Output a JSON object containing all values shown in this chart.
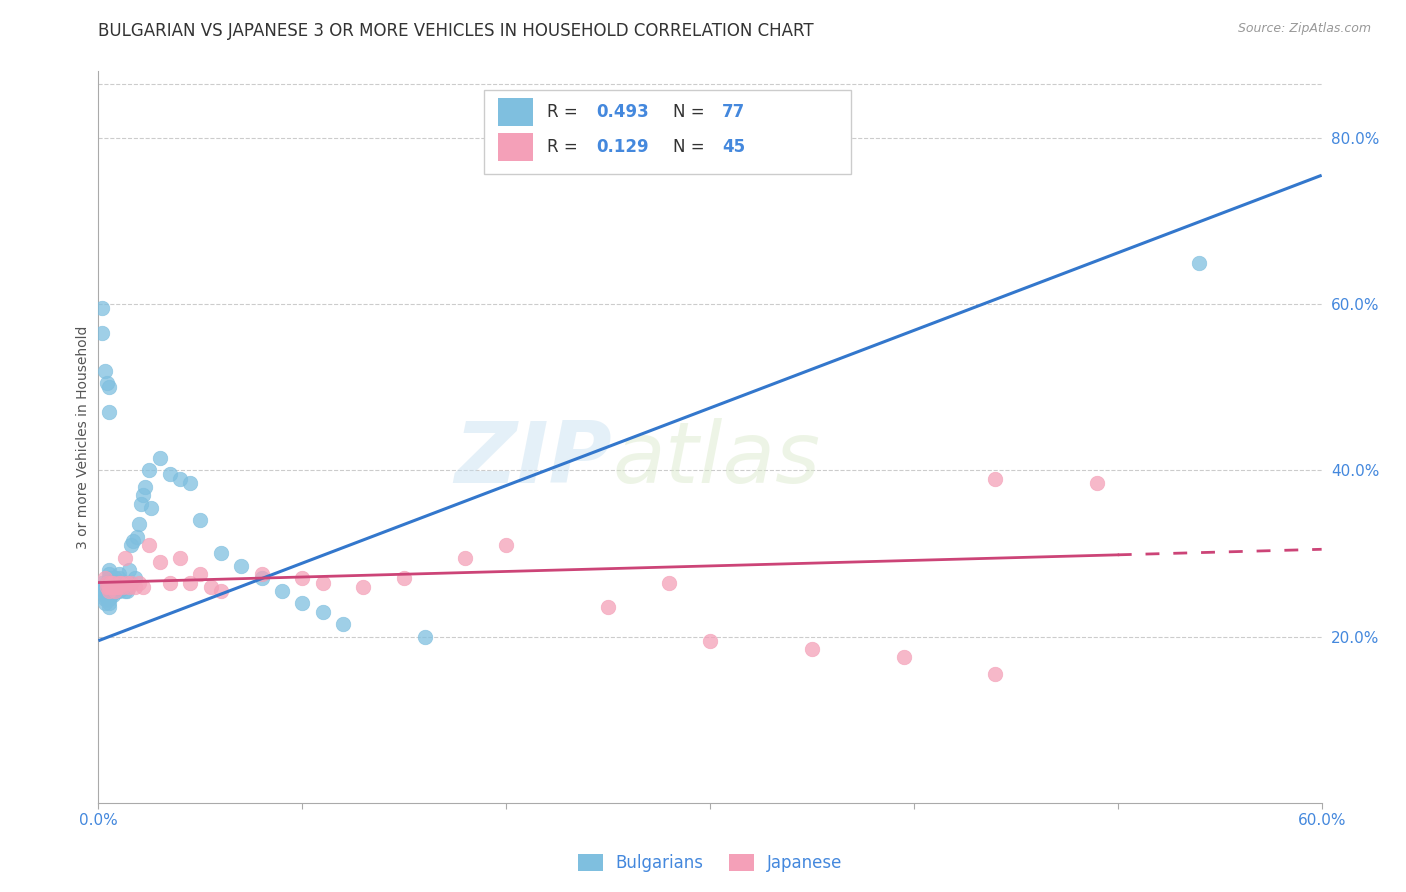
{
  "title": "BULGARIAN VS JAPANESE 3 OR MORE VEHICLES IN HOUSEHOLD CORRELATION CHART",
  "source": "Source: ZipAtlas.com",
  "ylabel": "3 or more Vehicles in Household",
  "xlim": [
    0.0,
    0.6
  ],
  "ylim": [
    0.0,
    0.88
  ],
  "blue_color": "#7fbfdf",
  "pink_color": "#f4a0b8",
  "blue_line_color": "#3377cc",
  "pink_line_color": "#cc4477",
  "watermark_zip": "ZIP",
  "watermark_atlas": "atlas",
  "blue_line_x": [
    0.0,
    0.6
  ],
  "blue_line_y": [
    0.195,
    0.755
  ],
  "pink_line_x": [
    0.0,
    0.6
  ],
  "pink_line_y": [
    0.265,
    0.305
  ],
  "blue_dots_x": [
    0.002,
    0.002,
    0.002,
    0.003,
    0.003,
    0.003,
    0.003,
    0.003,
    0.004,
    0.004,
    0.004,
    0.004,
    0.004,
    0.005,
    0.005,
    0.005,
    0.005,
    0.005,
    0.005,
    0.005,
    0.005,
    0.005,
    0.005,
    0.006,
    0.006,
    0.006,
    0.006,
    0.007,
    0.007,
    0.007,
    0.007,
    0.008,
    0.008,
    0.008,
    0.008,
    0.009,
    0.009,
    0.01,
    0.01,
    0.01,
    0.01,
    0.01,
    0.011,
    0.011,
    0.012,
    0.012,
    0.013,
    0.013,
    0.014,
    0.014,
    0.015,
    0.015,
    0.016,
    0.016,
    0.017,
    0.018,
    0.019,
    0.02,
    0.021,
    0.022,
    0.023,
    0.025,
    0.026,
    0.03,
    0.035,
    0.04,
    0.045,
    0.05,
    0.06,
    0.07,
    0.08,
    0.09,
    0.1,
    0.11,
    0.12,
    0.16,
    0.54
  ],
  "blue_dots_y": [
    0.265,
    0.26,
    0.255,
    0.26,
    0.255,
    0.25,
    0.245,
    0.24,
    0.265,
    0.26,
    0.255,
    0.25,
    0.245,
    0.28,
    0.275,
    0.27,
    0.265,
    0.26,
    0.255,
    0.25,
    0.245,
    0.24,
    0.235,
    0.265,
    0.26,
    0.255,
    0.25,
    0.265,
    0.26,
    0.255,
    0.25,
    0.27,
    0.265,
    0.26,
    0.255,
    0.26,
    0.255,
    0.275,
    0.27,
    0.265,
    0.26,
    0.255,
    0.265,
    0.26,
    0.265,
    0.258,
    0.265,
    0.255,
    0.265,
    0.255,
    0.28,
    0.265,
    0.31,
    0.265,
    0.315,
    0.27,
    0.32,
    0.335,
    0.36,
    0.37,
    0.38,
    0.4,
    0.355,
    0.415,
    0.395,
    0.39,
    0.385,
    0.34,
    0.3,
    0.285,
    0.27,
    0.255,
    0.24,
    0.23,
    0.215,
    0.2,
    0.65
  ],
  "blue_high_x": [
    0.002,
    0.002,
    0.003,
    0.004,
    0.005,
    0.005
  ],
  "blue_high_y": [
    0.565,
    0.595,
    0.52,
    0.505,
    0.5,
    0.47
  ],
  "pink_dots_x": [
    0.003,
    0.004,
    0.004,
    0.005,
    0.005,
    0.006,
    0.006,
    0.007,
    0.007,
    0.008,
    0.008,
    0.009,
    0.01,
    0.01,
    0.011,
    0.012,
    0.013,
    0.014,
    0.015,
    0.016,
    0.018,
    0.02,
    0.022,
    0.025,
    0.03,
    0.035,
    0.04,
    0.045,
    0.05,
    0.055,
    0.06,
    0.08,
    0.1,
    0.11,
    0.13,
    0.15,
    0.18,
    0.2,
    0.25,
    0.28,
    0.3,
    0.35,
    0.395,
    0.44,
    0.49
  ],
  "pink_dots_y": [
    0.27,
    0.265,
    0.26,
    0.26,
    0.255,
    0.265,
    0.26,
    0.265,
    0.26,
    0.26,
    0.255,
    0.26,
    0.265,
    0.26,
    0.265,
    0.26,
    0.295,
    0.265,
    0.26,
    0.265,
    0.26,
    0.265,
    0.26,
    0.31,
    0.29,
    0.265,
    0.295,
    0.265,
    0.275,
    0.26,
    0.255,
    0.275,
    0.27,
    0.265,
    0.26,
    0.27,
    0.295,
    0.31,
    0.235,
    0.265,
    0.195,
    0.185,
    0.175,
    0.155,
    0.385
  ],
  "pink_outlier_x": [
    0.44
  ],
  "pink_outlier_y": [
    0.39
  ],
  "pink_high_x": [
    0.44
  ],
  "pink_high_y": [
    0.39
  ],
  "grid_color": "#cccccc",
  "background_color": "#ffffff",
  "title_fontsize": 12,
  "axis_label_fontsize": 10,
  "tick_fontsize": 11,
  "legend_r1": "0.493",
  "legend_n1": "77",
  "legend_r2": "0.129",
  "legend_n2": "45"
}
